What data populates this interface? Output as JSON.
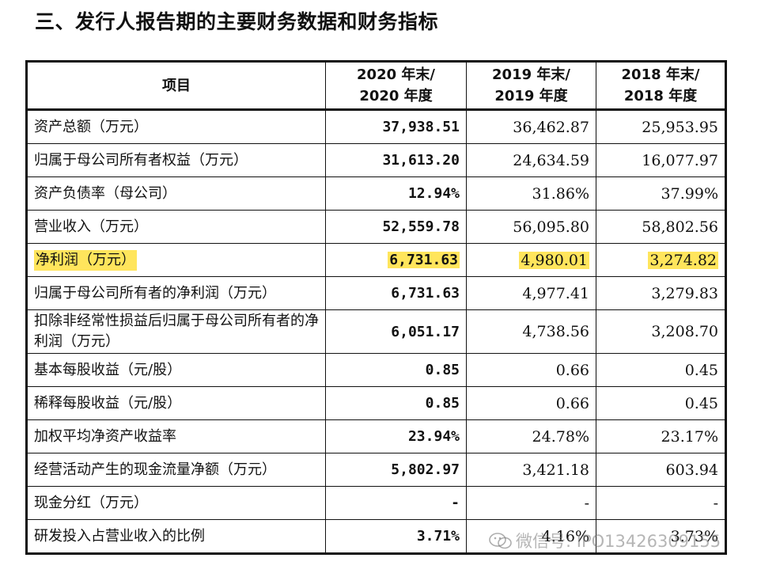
{
  "heading": "三、发行人报告期的主要财务数据和财务指标",
  "table": {
    "headers": [
      "项目",
      "2020 年末/\n2020 年度",
      "2019 年末/\n2019 年度",
      "2018 年末/\n2018 年度"
    ],
    "rows": [
      {
        "label": "资产总额（万元）",
        "v2020": "37,938.51",
        "v2019": "36,462.87",
        "v2018": "25,953.95"
      },
      {
        "label": "归属于母公司所有者权益（万元）",
        "v2020": "31,613.20",
        "v2019": "24,634.59",
        "v2018": "16,077.97"
      },
      {
        "label": "资产负债率（母公司）",
        "v2020": "12.94%",
        "v2019": "31.86%",
        "v2018": "37.99%"
      },
      {
        "label": "营业收入（万元）",
        "v2020": "52,559.78",
        "v2019": "56,095.80",
        "v2018": "58,802.56"
      },
      {
        "label": "净利润（万元）",
        "v2020": "6,731.63",
        "v2019": "4,980.01",
        "v2018": "3,274.82"
      },
      {
        "label": "归属于母公司所有者的净利润（万元）",
        "v2020": "6,731.63",
        "v2019": "4,977.41",
        "v2018": "3,279.83"
      },
      {
        "label": "扣除非经常性损益后归属于母公司所有者的净利润（万元）",
        "v2020": "6,051.17",
        "v2019": "4,738.56",
        "v2018": "3,208.70"
      },
      {
        "label": "基本每股收益（元/股）",
        "v2020": "0.85",
        "v2019": "0.66",
        "v2018": "0.45"
      },
      {
        "label": "稀释每股收益（元/股）",
        "v2020": "0.85",
        "v2019": "0.66",
        "v2018": "0.45"
      },
      {
        "label": "加权平均净资产收益率",
        "v2020": "23.94%",
        "v2019": "24.78%",
        "v2018": "23.17%"
      },
      {
        "label": "经营活动产生的现金流量净额（万元）",
        "v2020": "5,802.97",
        "v2019": "3,421.18",
        "v2018": "603.94"
      },
      {
        "label": "现金分红（万元）",
        "v2020": "-",
        "v2019": "-",
        "v2018": "-"
      },
      {
        "label": "研发投入占营业收入的比例",
        "v2020": "3.71%",
        "v2019": "4.16%",
        "v2018": "3.73%"
      }
    ]
  },
  "highlight_color": "#ffe55c",
  "watermark": {
    "icon": "wechat-icon",
    "text": "微信号: IPO13426309155"
  }
}
